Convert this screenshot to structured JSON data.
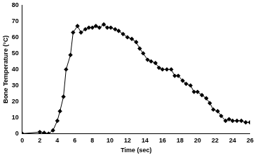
{
  "chart_data": {
    "type": "line",
    "x_label": "Time (sec)",
    "y_label": "Bone Temperature (°C)",
    "x": [
      0,
      2,
      2.5,
      3,
      3.5,
      4,
      4.3,
      4.7,
      5,
      5.5,
      5.8,
      6.3,
      6.7,
      7.2,
      7.6,
      8,
      8.4,
      8.8,
      9.3,
      9.7,
      10.1,
      10.6,
      11,
      11.5,
      12,
      12.5,
      13,
      13.4,
      13.8,
      14.3,
      14.7,
      15.2,
      15.6,
      16,
      16.5,
      17,
      17.4,
      17.8,
      18.3,
      18.7,
      19.2,
      19.6,
      20,
      20.5,
      21,
      21.4,
      21.8,
      22.3,
      22.7,
      23.2,
      23.6,
      24,
      24.5,
      25,
      25.5,
      26
    ],
    "values": [
      0,
      1,
      0.5,
      0,
      2,
      8,
      14,
      23,
      40,
      49,
      63,
      67,
      63,
      65,
      66,
      66,
      67,
      66,
      68,
      66,
      66,
      65,
      64,
      62,
      60,
      59,
      57,
      53,
      50,
      46,
      45,
      44,
      41,
      40,
      40,
      40,
      36,
      36,
      33,
      31,
      30,
      26,
      26,
      24,
      22,
      19,
      15,
      14,
      11,
      8,
      9,
      8,
      8,
      8,
      7,
      7
    ],
    "color": "#000000",
    "marker": "diamond",
    "line_style": "solid",
    "xlim": [
      0,
      26
    ],
    "xticks": [
      0,
      2,
      4,
      6,
      8,
      10,
      12,
      14,
      16,
      18,
      20,
      22,
      24,
      26
    ],
    "ylim": [
      0,
      80
    ],
    "yticks": [
      0,
      10,
      20,
      30,
      40,
      50,
      60,
      70,
      80
    ],
    "grid": false
  }
}
